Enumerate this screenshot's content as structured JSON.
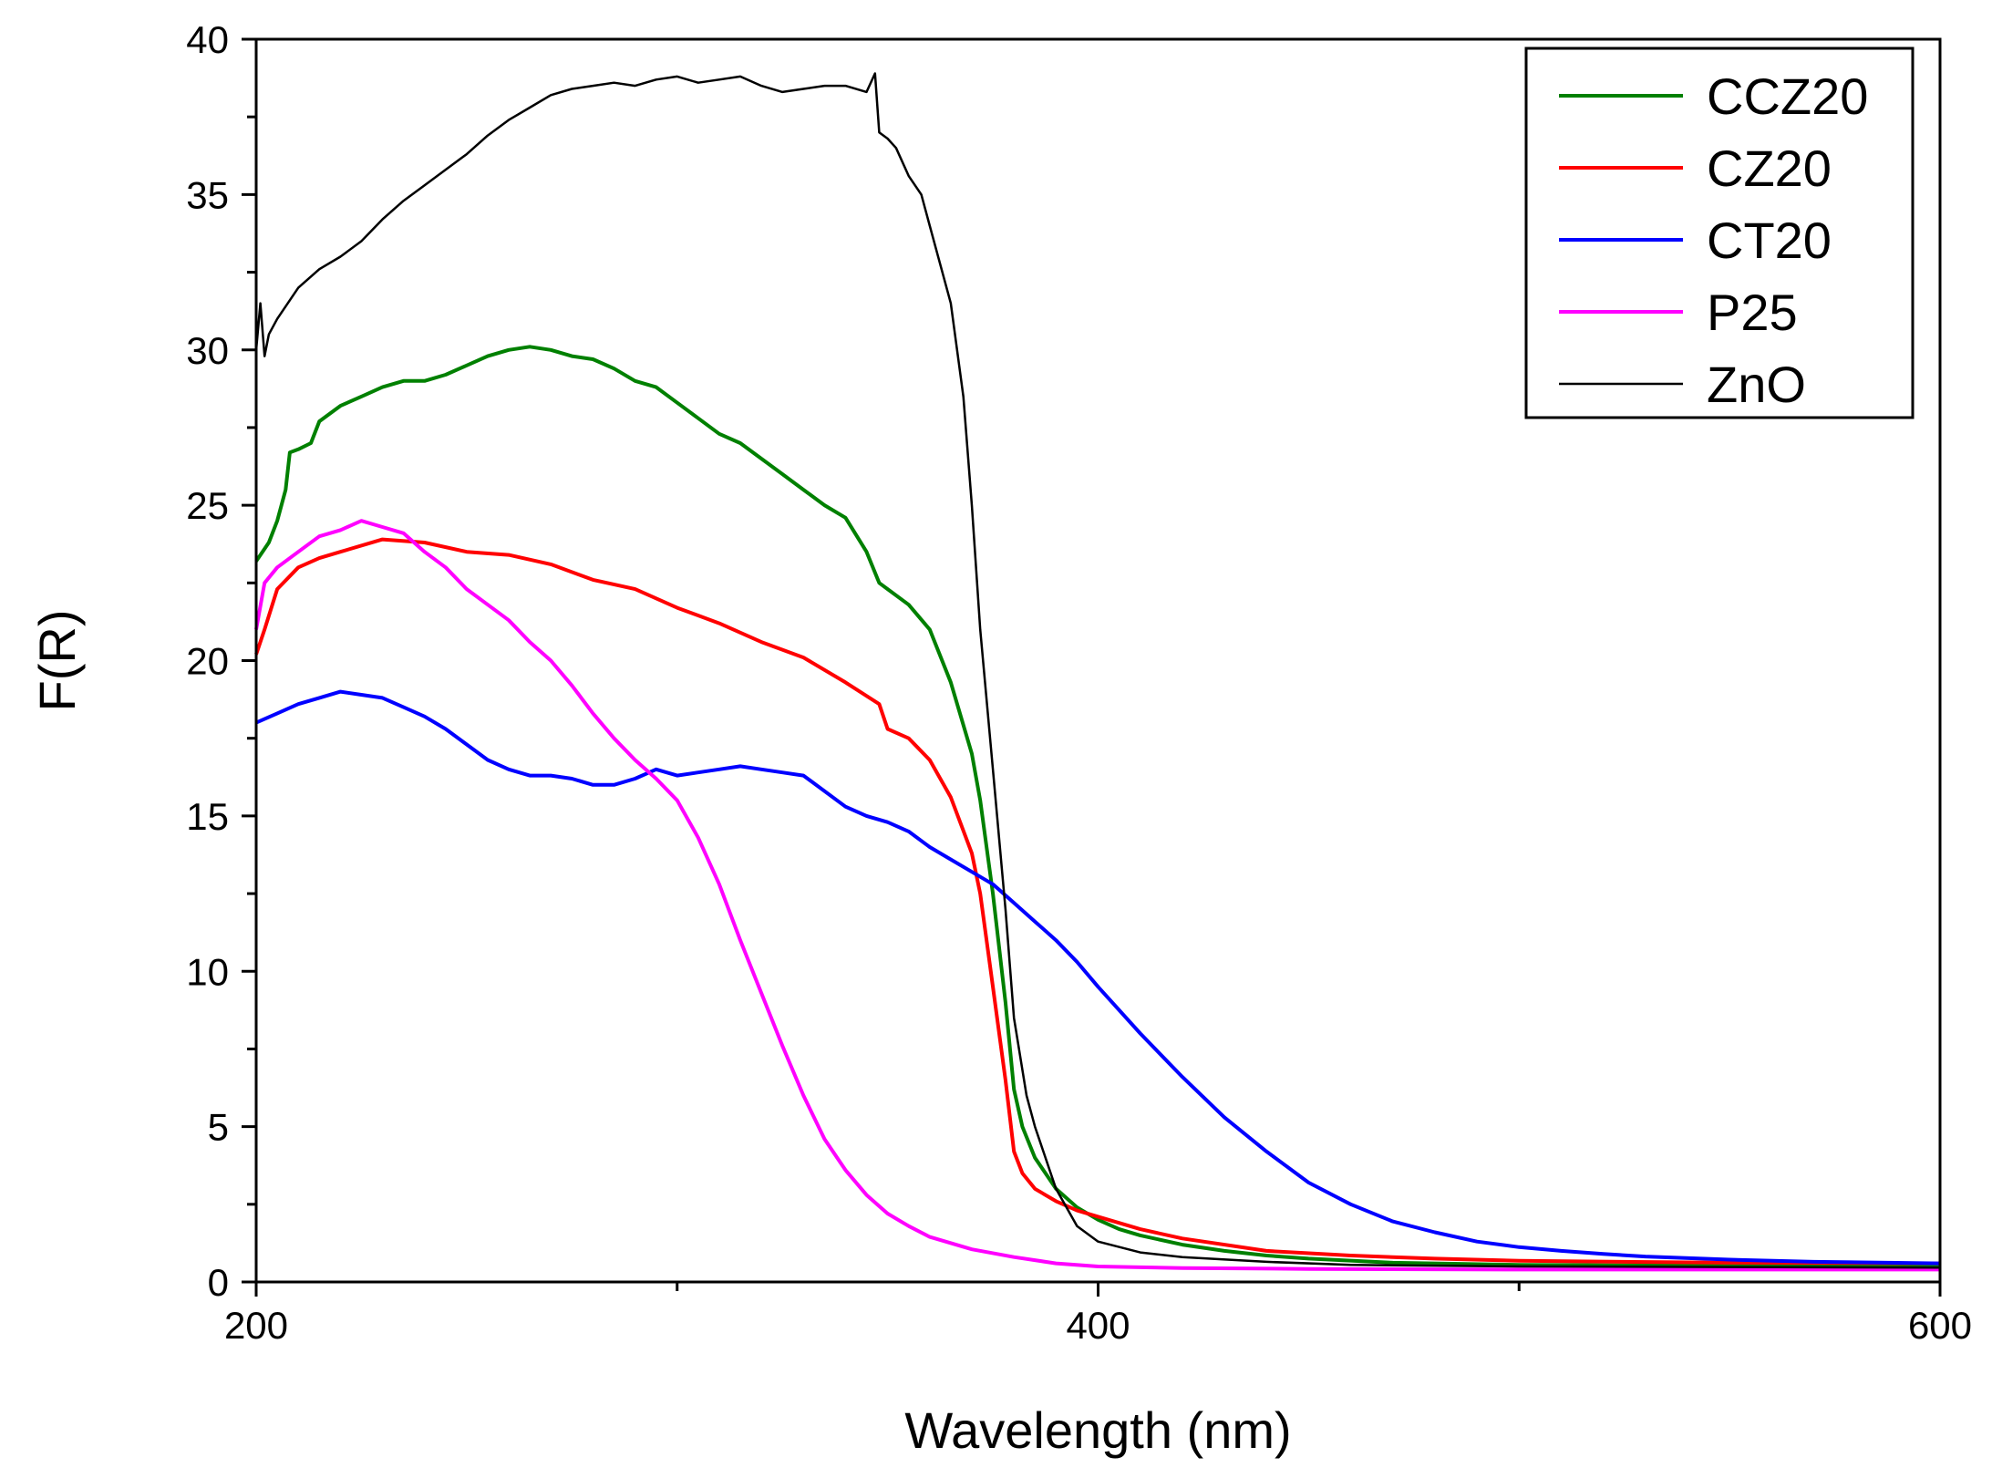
{
  "chart_data": {
    "type": "line",
    "title": "",
    "xlabel": "Wavelength (nm)",
    "ylabel": "F(R)",
    "xlim": [
      200,
      600
    ],
    "ylim": [
      0,
      40
    ],
    "x_ticks": [
      "200",
      "400",
      "600"
    ],
    "y_ticks": [
      "0",
      "5",
      "10",
      "15",
      "20",
      "25",
      "30",
      "35",
      "40"
    ],
    "grid": false,
    "legend_position": "top-right",
    "series": [
      {
        "name": "CCZ20",
        "color": "#008000",
        "x": [
          200,
          203,
          205,
          207,
          208,
          210,
          213,
          215,
          220,
          225,
          230,
          235,
          240,
          245,
          250,
          255,
          260,
          265,
          270,
          275,
          280,
          285,
          290,
          295,
          300,
          305,
          310,
          315,
          320,
          325,
          330,
          335,
          340,
          345,
          348,
          350,
          355,
          360,
          365,
          370,
          372,
          375,
          378,
          380,
          382,
          385,
          390,
          395,
          400,
          405,
          410,
          420,
          430,
          440,
          450,
          470,
          500,
          550,
          600
        ],
        "y": [
          23.2,
          23.8,
          24.5,
          25.5,
          26.7,
          26.8,
          27.0,
          27.7,
          28.2,
          28.5,
          28.8,
          29.0,
          29.0,
          29.2,
          29.5,
          29.8,
          30.0,
          30.1,
          30.0,
          29.8,
          29.7,
          29.4,
          29.0,
          28.8,
          28.3,
          27.8,
          27.3,
          27.0,
          26.5,
          26.0,
          25.5,
          25.0,
          24.6,
          23.5,
          22.5,
          22.3,
          21.8,
          21.0,
          19.3,
          17.0,
          15.5,
          12.5,
          9.0,
          6.2,
          5.0,
          4.0,
          3.0,
          2.4,
          2.0,
          1.7,
          1.5,
          1.2,
          1.0,
          0.85,
          0.75,
          0.62,
          0.55,
          0.52,
          0.5
        ]
      },
      {
        "name": "CZ20",
        "color": "#ff0000",
        "x": [
          200,
          202,
          205,
          210,
          215,
          220,
          230,
          240,
          250,
          260,
          270,
          280,
          290,
          300,
          310,
          320,
          330,
          340,
          348,
          350,
          355,
          360,
          365,
          370,
          372,
          375,
          378,
          380,
          382,
          385,
          390,
          395,
          400,
          410,
          420,
          440,
          460,
          480,
          500,
          550,
          600
        ],
        "y": [
          20.2,
          21.0,
          22.3,
          23.0,
          23.3,
          23.5,
          23.9,
          23.8,
          23.5,
          23.4,
          23.1,
          22.6,
          22.3,
          21.7,
          21.2,
          20.6,
          20.1,
          19.3,
          18.6,
          17.8,
          17.5,
          16.8,
          15.6,
          13.8,
          12.5,
          9.5,
          6.5,
          4.2,
          3.5,
          3.0,
          2.6,
          2.3,
          2.1,
          1.7,
          1.4,
          1.0,
          0.85,
          0.75,
          0.68,
          0.62,
          0.6
        ]
      },
      {
        "name": "CT20",
        "color": "#0000ff",
        "x": [
          200,
          205,
          210,
          215,
          220,
          225,
          230,
          235,
          240,
          245,
          250,
          255,
          260,
          265,
          270,
          275,
          280,
          285,
          290,
          295,
          300,
          305,
          310,
          315,
          320,
          325,
          330,
          340,
          345,
          350,
          355,
          360,
          365,
          370,
          375,
          380,
          385,
          390,
          395,
          400,
          410,
          420,
          430,
          440,
          450,
          460,
          470,
          480,
          490,
          500,
          510,
          520,
          530,
          550,
          570,
          600
        ],
        "y": [
          18.0,
          18.3,
          18.6,
          18.8,
          19.0,
          18.9,
          18.8,
          18.5,
          18.2,
          17.8,
          17.3,
          16.8,
          16.5,
          16.3,
          16.3,
          16.2,
          16.0,
          16.0,
          16.2,
          16.5,
          16.3,
          16.4,
          16.5,
          16.6,
          16.5,
          16.4,
          16.3,
          15.3,
          15.0,
          14.8,
          14.5,
          14.0,
          13.6,
          13.2,
          12.8,
          12.2,
          11.6,
          11.0,
          10.3,
          9.5,
          8.0,
          6.6,
          5.3,
          4.2,
          3.2,
          2.5,
          1.95,
          1.6,
          1.3,
          1.12,
          1.0,
          0.9,
          0.82,
          0.72,
          0.65,
          0.6
        ]
      },
      {
        "name": "P25",
        "color": "#ff00ff",
        "x": [
          200,
          202,
          205,
          210,
          215,
          220,
          225,
          230,
          235,
          240,
          245,
          250,
          255,
          260,
          265,
          270,
          275,
          280,
          285,
          290,
          295,
          300,
          305,
          310,
          315,
          320,
          325,
          330,
          335,
          340,
          345,
          350,
          355,
          360,
          370,
          380,
          390,
          400,
          420,
          450,
          500,
          550,
          600
        ],
        "y": [
          21.0,
          22.5,
          23.0,
          23.5,
          24.0,
          24.2,
          24.5,
          24.3,
          24.1,
          23.5,
          23.0,
          22.3,
          21.8,
          21.3,
          20.6,
          20.0,
          19.2,
          18.3,
          17.5,
          16.8,
          16.2,
          15.5,
          14.3,
          12.8,
          11.0,
          9.3,
          7.6,
          6.0,
          4.6,
          3.6,
          2.8,
          2.2,
          1.8,
          1.45,
          1.05,
          0.8,
          0.6,
          0.5,
          0.45,
          0.42,
          0.4,
          0.4,
          0.4
        ]
      },
      {
        "name": "ZnO",
        "color": "#000000",
        "x": [
          200,
          201,
          202,
          203,
          205,
          210,
          215,
          220,
          225,
          230,
          235,
          240,
          245,
          250,
          255,
          260,
          265,
          270,
          275,
          280,
          285,
          290,
          295,
          300,
          305,
          310,
          315,
          320,
          325,
          330,
          335,
          340,
          345,
          347,
          348,
          350,
          352,
          355,
          358,
          360,
          365,
          368,
          370,
          372,
          375,
          378,
          380,
          383,
          385,
          390,
          395,
          400,
          410,
          420,
          440,
          460,
          500,
          550,
          600
        ],
        "y": [
          30.0,
          31.5,
          29.8,
          30.5,
          31.0,
          32.0,
          32.6,
          33.0,
          33.5,
          34.2,
          34.8,
          35.3,
          35.8,
          36.3,
          36.9,
          37.4,
          37.8,
          38.2,
          38.4,
          38.5,
          38.6,
          38.5,
          38.7,
          38.8,
          38.6,
          38.7,
          38.8,
          38.5,
          38.3,
          38.4,
          38.5,
          38.5,
          38.3,
          38.9,
          37.0,
          36.8,
          36.5,
          35.6,
          35.0,
          34.0,
          31.5,
          28.5,
          25.0,
          21.0,
          16.5,
          12.0,
          8.5,
          6.0,
          5.0,
          3.0,
          1.8,
          1.3,
          0.95,
          0.8,
          0.65,
          0.55,
          0.5,
          0.48,
          0.46
        ]
      }
    ]
  }
}
